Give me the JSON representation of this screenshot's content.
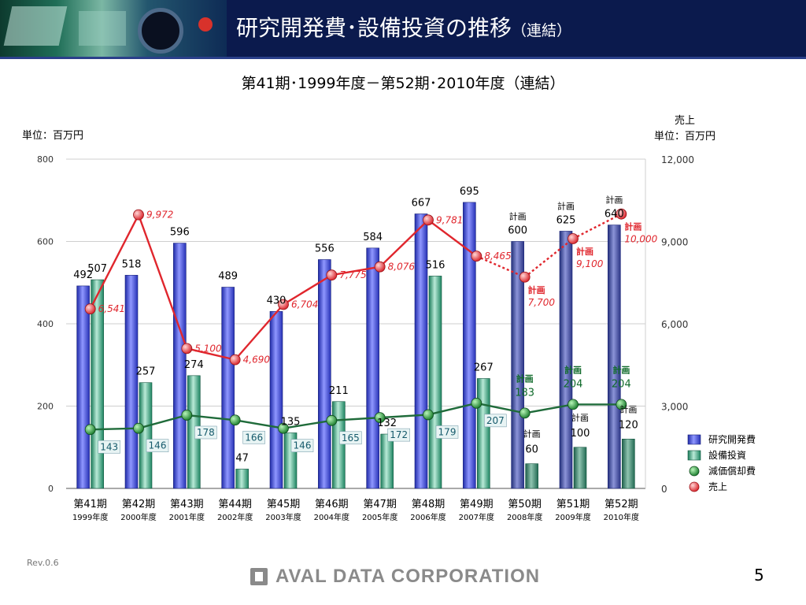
{
  "header": {
    "title": "研究開発費･設備投資の推移",
    "title_suffix": "（連結）"
  },
  "subtitle": "第41期･1999年度－第52期･2010年度（連結）",
  "footer": {
    "rev": "Rev.0.6",
    "company": "AVAL DATA CORPORATION",
    "page_number": "5"
  },
  "chart_data": {
    "type": "bar",
    "unit_left": "単位：百万円",
    "unit_right_label": "売上",
    "unit_right": "単位：百万円",
    "left_axis": {
      "ylim": [
        0,
        800
      ],
      "ticks": [
        "0",
        "200",
        "400",
        "600",
        "800"
      ]
    },
    "right_axis": {
      "ylim": [
        0,
        12000
      ],
      "ticks": [
        "0",
        "3,000",
        "6,000",
        "9,000",
        "12,000"
      ]
    },
    "grid": true,
    "categories": [
      [
        "第41期",
        "1999年度"
      ],
      [
        "第42期",
        "2000年度"
      ],
      [
        "第43期",
        "2001年度"
      ],
      [
        "第44期",
        "2002年度"
      ],
      [
        "第45期",
        "2003年度"
      ],
      [
        "第46期",
        "2004年度"
      ],
      [
        "第47期",
        "2005年度"
      ],
      [
        "第48期",
        "2006年度"
      ],
      [
        "第49期",
        "2007年度"
      ],
      [
        "第50期",
        "2008年度"
      ],
      [
        "第51期",
        "2009年度"
      ],
      [
        "第52期",
        "2010年度"
      ]
    ],
    "plan_label": "計画",
    "series": [
      {
        "name": "研究開発費",
        "kind": "bar",
        "axis": "left",
        "color": "#3a46d8",
        "values": [
          492,
          518,
          596,
          489,
          430,
          556,
          584,
          667,
          695,
          600,
          625,
          640
        ],
        "labels": [
          "492",
          "518",
          "596",
          "489",
          "430",
          "556",
          "584",
          "667",
          "695",
          "600",
          "625",
          "640"
        ],
        "plan": [
          false,
          false,
          false,
          false,
          false,
          false,
          false,
          false,
          false,
          true,
          true,
          true
        ]
      },
      {
        "name": "設備投資",
        "kind": "bar",
        "axis": "left",
        "color": "#2aa77a",
        "values": [
          507,
          257,
          274,
          47,
          135,
          211,
          132,
          516,
          267,
          60,
          100,
          120
        ],
        "labels": [
          "507",
          "257",
          "274",
          "47",
          "135",
          "211",
          "132",
          "516",
          "267",
          "60",
          "100",
          "120"
        ],
        "plan": [
          false,
          false,
          false,
          false,
          false,
          false,
          false,
          false,
          false,
          true,
          true,
          true
        ]
      },
      {
        "name": "減価償却費",
        "kind": "line",
        "axis": "left",
        "color": "#1f6b3a",
        "values": [
          143,
          146,
          178,
          166,
          146,
          165,
          172,
          179,
          207,
          183,
          204,
          204
        ],
        "labels": [
          "143",
          "146",
          "178",
          "166",
          "146",
          "165",
          "172",
          "179",
          "207",
          "183",
          "204",
          "204"
        ],
        "plan": [
          false,
          false,
          false,
          false,
          false,
          false,
          false,
          false,
          false,
          true,
          true,
          true
        ]
      },
      {
        "name": "売上",
        "kind": "line",
        "axis": "right",
        "color": "#e0262d",
        "values": [
          6541,
          9972,
          5100,
          4690,
          6704,
          7775,
          8076,
          9781,
          8465,
          7700,
          9100,
          10000
        ],
        "labels": [
          "6,541",
          "9,972",
          "5,100",
          "4,690",
          "6,704",
          "7,775",
          "8,076",
          "9,781",
          "8,465",
          "7,700",
          "9,100",
          "10,000"
        ],
        "plan": [
          false,
          false,
          false,
          false,
          false,
          false,
          false,
          false,
          false,
          true,
          true,
          true
        ]
      }
    ],
    "legend": {
      "placement": "bottom-right",
      "entries": [
        "研究開発費",
        "設備投資",
        "減価償却費",
        "売上"
      ]
    }
  }
}
